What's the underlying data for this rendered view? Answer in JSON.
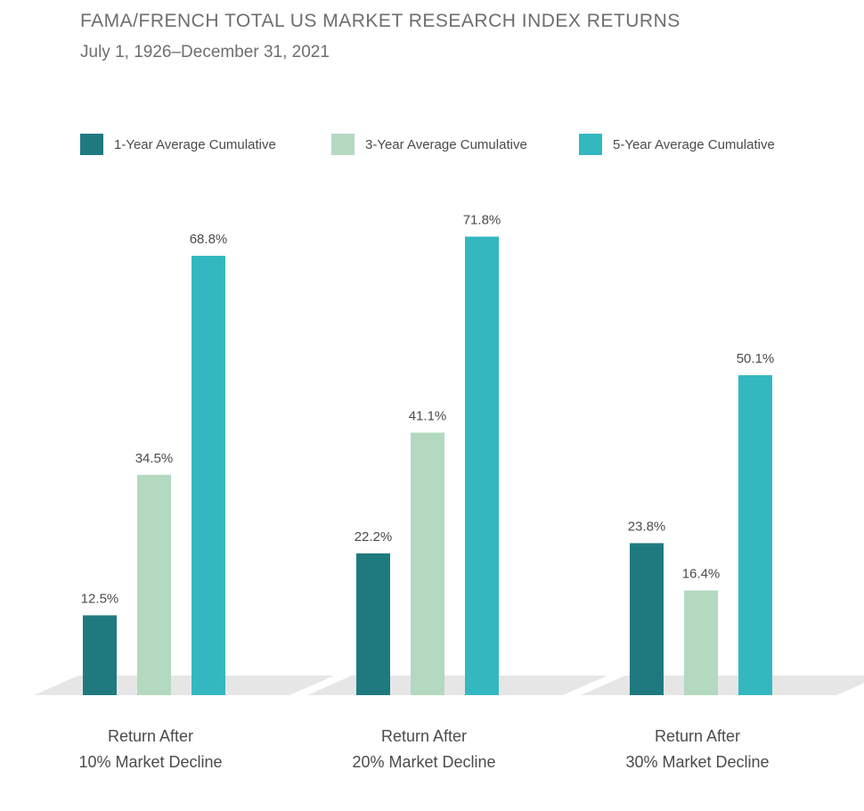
{
  "chart_data": {
    "type": "bar",
    "title": "FAMA/FRENCH TOTAL US MARKET RESEARCH INDEX RETURNS",
    "subtitle": "July 1, 1926–December 31, 2021",
    "categories": [
      [
        "Return After",
        "10% Market Decline"
      ],
      [
        "Return After",
        "20% Market Decline"
      ],
      [
        "Return After",
        "30% Market Decline"
      ]
    ],
    "series": [
      {
        "name": "1-Year Average Cumulative",
        "color": "#1f7a80",
        "values": [
          12.5,
          22.2,
          23.8
        ],
        "labels": [
          "12.5%",
          "22.2%",
          "23.8%"
        ]
      },
      {
        "name": "3-Year Average Cumulative",
        "color": "#b3d9c0",
        "values": [
          34.5,
          41.1,
          16.4
        ],
        "labels": [
          "34.5%",
          "41.1%",
          "16.4%"
        ]
      },
      {
        "name": "5-Year Average Cumulative",
        "color": "#33b8c0",
        "values": [
          68.8,
          71.8,
          50.1
        ],
        "labels": [
          "68.8%",
          "71.8%",
          "50.1%"
        ]
      }
    ],
    "ylim": [
      0,
      75
    ],
    "grid": false,
    "legend_position": "top",
    "colors": {
      "floor": "#e6e6e6",
      "floor_shadow": "#d0d0d0"
    }
  }
}
